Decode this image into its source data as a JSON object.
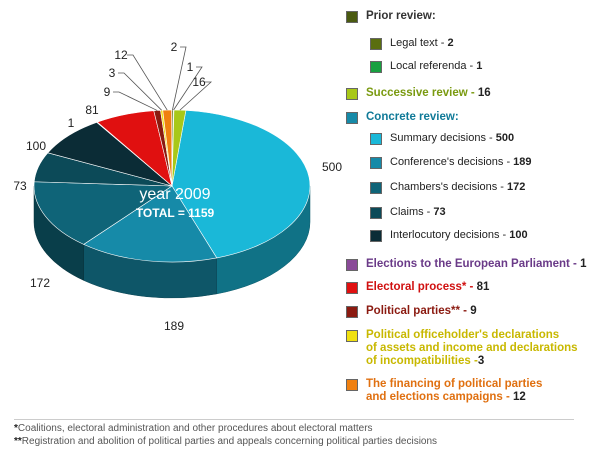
{
  "chart_data": {
    "type": "pie",
    "title": "year 2009",
    "total_label": "TOTAL = 1159",
    "slices": [
      {
        "label": "Summary decisions",
        "value": 500,
        "color": "#1ab8d8"
      },
      {
        "label": "Conference's decisions",
        "value": 189,
        "color": "#168aa8"
      },
      {
        "label": "Chambers's decisions",
        "value": 172,
        "color": "#0f6478"
      },
      {
        "label": "Claims",
        "value": 73,
        "color": "#0c4a58"
      },
      {
        "label": "Interlocutory decisions",
        "value": 100,
        "color": "#0b2c36"
      },
      {
        "label": "Elections to the European Parliament",
        "value": 1,
        "color": "#8a4a98"
      },
      {
        "label": "Electoral process*",
        "value": 81,
        "color": "#e01010"
      },
      {
        "label": "Political parties**",
        "value": 9,
        "color": "#8b1a10"
      },
      {
        "label": "Political officeholder's declarations",
        "value": 3,
        "color": "#f0e010"
      },
      {
        "label": "The financing of political parties",
        "value": 12,
        "color": "#f08010"
      },
      {
        "label": "Legal text",
        "value": 2,
        "color": "#5a6e10"
      },
      {
        "label": "Local referenda",
        "value": 1,
        "color": "#18a040"
      },
      {
        "label": "Successive review",
        "value": 16,
        "color": "#a8c818"
      }
    ],
    "value_labels": [
      "500",
      "189",
      "172",
      "73",
      "100",
      "1",
      "81",
      "9",
      "3",
      "12",
      "2",
      "1",
      "16"
    ]
  },
  "legend": {
    "prior_review": {
      "title": "Prior review:",
      "color": "#4a5a10"
    },
    "legal_text": {
      "label": "Legal text - ",
      "value": "2",
      "color": "#5a6e10"
    },
    "local_referenda": {
      "label": "Local referenda - ",
      "value": "1",
      "color": "#18a040"
    },
    "successive_review": {
      "label": "Successive review - ",
      "value": "16",
      "color": "#a8c818",
      "text_color": "#7a9a10"
    },
    "concrete_review": {
      "title": "Concrete review:",
      "color": "#168aa8",
      "text_color": "#107a98"
    },
    "summary": {
      "label": "Summary decisions - ",
      "value": "500",
      "color": "#1ab8d8"
    },
    "conference": {
      "label": "Conference's decisions - ",
      "value": "189",
      "color": "#168aa8"
    },
    "chambers": {
      "label": "Chambers's decisions - ",
      "value": "172",
      "color": "#0f6478"
    },
    "claims": {
      "label": "Claims - ",
      "value": "73",
      "color": "#0c4a58"
    },
    "interlocutory": {
      "label": "Interlocutory decisions - ",
      "value": "100",
      "color": "#0b2c36"
    },
    "european": {
      "label": "Elections to the European Parliament - ",
      "value": "1",
      "color": "#8a4a98",
      "text_color": "#6a3a88"
    },
    "electoral": {
      "label": "Electoral process* - ",
      "value": "81",
      "color": "#e01010",
      "text_color": "#d01010"
    },
    "parties": {
      "label": "Political parties** - ",
      "value": "9",
      "color": "#8b1a10",
      "text_color": "#8b1a10"
    },
    "officeholder": {
      "line1": "Political officeholder's declarations",
      "line2": "of assets and income and declarations",
      "line3": "of incompatibilities -",
      "value": "3",
      "color": "#f0e010",
      "text_color": "#c8b800"
    },
    "financing": {
      "line1": "The financing of political parties",
      "line2": "and elections campaigns - ",
      "value": "12",
      "color": "#f08010",
      "text_color": "#e07010"
    }
  },
  "footnotes": {
    "note1_mark": "*",
    "note1": "Coalitions, electoral administration and other procedures about electoral matters",
    "note2_mark": "**",
    "note2": "Registration and abolition of political parties and appeals concerning political parties decisions"
  }
}
